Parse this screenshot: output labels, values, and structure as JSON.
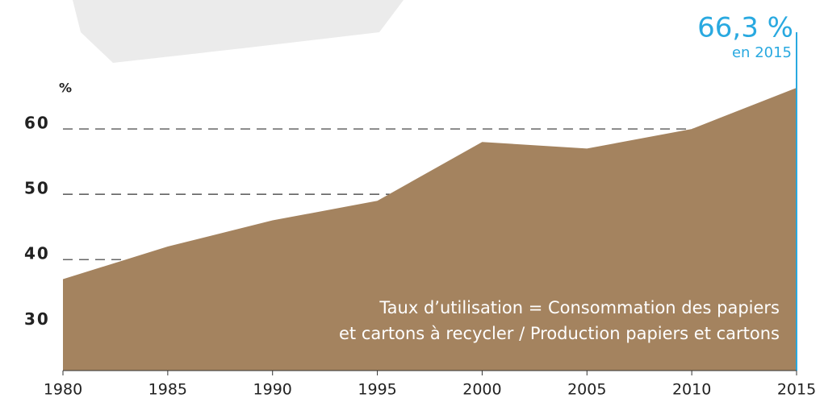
{
  "chart_data": {
    "type": "area",
    "y_label": "%",
    "x": [
      1980,
      1985,
      1990,
      1995,
      2000,
      2005,
      2010,
      2015
    ],
    "series": [
      {
        "color": "#a4835f",
        "values": [
          37,
          42,
          46,
          49,
          58,
          57,
          60,
          66.3
        ],
        "value_labels": [
          null,
          null,
          null,
          null,
          null,
          null,
          null,
          "66,3 %"
        ]
      }
    ],
    "annotation": "en 2015",
    "note": [
      "Taux d’utilisation = Consommation des papiers",
      "et cartons à recycler / Production papiers et cartons"
    ],
    "xlim": [
      1980,
      2015
    ],
    "xticks": [
      1980,
      1985,
      1990,
      1995,
      2000,
      2005,
      2010,
      2015
    ],
    "ylim": [
      23,
      70
    ],
    "yticks": [
      30,
      40,
      50,
      60
    ],
    "grid": true,
    "highlight_color": "#29a9e0"
  }
}
